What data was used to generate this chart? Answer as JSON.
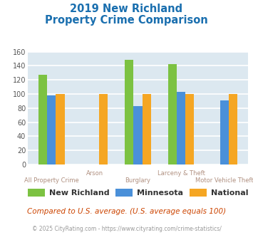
{
  "title_line1": "2019 New Richland",
  "title_line2": "Property Crime Comparison",
  "title_color": "#1a6faf",
  "categories": [
    "All Property Crime",
    "Arson",
    "Burglary",
    "Larceny & Theft",
    "Motor Vehicle Theft"
  ],
  "series": {
    "New Richland": [
      127,
      0,
      148,
      142,
      0
    ],
    "Minnesota": [
      98,
      0,
      83,
      103,
      91
    ],
    "National": [
      100,
      100,
      100,
      100,
      100
    ]
  },
  "colors": {
    "New Richland": "#7cc242",
    "Minnesota": "#4a90d9",
    "National": "#f5a623"
  },
  "ylim": [
    0,
    160
  ],
  "yticks": [
    0,
    20,
    40,
    60,
    80,
    100,
    120,
    140,
    160
  ],
  "background_color": "#dce8f0",
  "grid_color": "#ffffff",
  "xlabel_color": "#b09080",
  "footer_text": "Compared to U.S. average. (U.S. average equals 100)",
  "footer_color": "#cc4400",
  "copyright_text": "© 2025 CityRating.com - https://www.cityrating.com/crime-statistics/",
  "copyright_color": "#999999"
}
